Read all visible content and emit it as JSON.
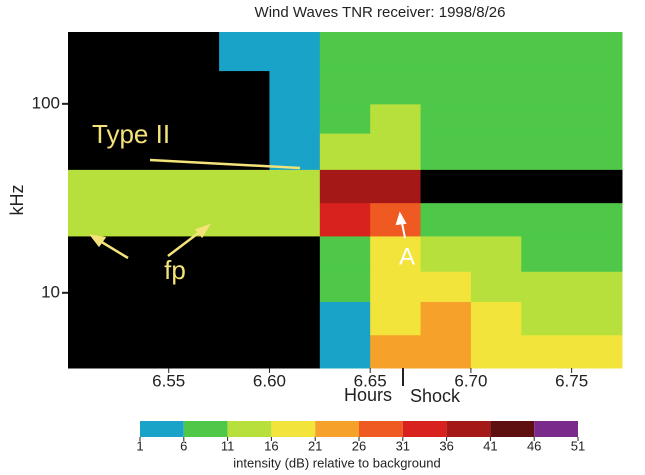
{
  "chart_data": {
    "type": "spectrogram",
    "title": "Wind Waves TNR receiver: 1998/8/26",
    "x_label": "Hours",
    "y_label": "kHz",
    "colorbar_label": "intensity (dB) relative to background",
    "annotations": [
      "Type II",
      "fp",
      "A",
      "Shock"
    ],
    "xlim": [
      6.5,
      6.775
    ],
    "ylim": [
      4,
      240
    ],
    "y_log": true,
    "xticks": [
      6.55,
      {
        "value": 6.6,
        "label": "6.60"
      },
      6.65,
      {
        "value": 6.7,
        "label": "6.70"
      },
      6.75
    ],
    "yticks": [
      10,
      100
    ],
    "xbins": [
      6.5,
      6.525,
      6.55,
      6.575,
      6.6,
      6.625,
      6.65,
      6.675,
      6.7,
      6.725,
      6.75,
      6.775
    ],
    "ybins": [
      4,
      6,
      9,
      13,
      20,
      30,
      45,
      70,
      100,
      150,
      240
    ],
    "z": [
      [
        0,
        0,
        0,
        0,
        0,
        3,
        22,
        24,
        20,
        18,
        16
      ],
      [
        0,
        0,
        0,
        0,
        0,
        5,
        20,
        22,
        17,
        14,
        13
      ],
      [
        0,
        0,
        0,
        0,
        0,
        6,
        18,
        18,
        14,
        12,
        12
      ],
      [
        0,
        0,
        0,
        0,
        0,
        8,
        17,
        14,
        11,
        10,
        10
      ],
      [
        14,
        14,
        13,
        12,
        12,
        35,
        30,
        9,
        8,
        8,
        9
      ],
      [
        12,
        12,
        12,
        11,
        11,
        38,
        36,
        0,
        0,
        0,
        0
      ],
      [
        0,
        0,
        0,
        0,
        2,
        12,
        14,
        10,
        10,
        9,
        9
      ],
      [
        0,
        0,
        0,
        0,
        3,
        10,
        12,
        9,
        9,
        8,
        9
      ],
      [
        0,
        0,
        0,
        0,
        2,
        9,
        10,
        8,
        8,
        7,
        8
      ],
      [
        0,
        0,
        0,
        2,
        3,
        8,
        9,
        6,
        6,
        6,
        6
      ]
    ],
    "background_color": "#000000",
    "colorbar_ticks": [
      1,
      6,
      11,
      16,
      21,
      26,
      31,
      36,
      41,
      46,
      51
    ],
    "colors": [
      "#1aa3c8",
      "#4fc84a",
      "#b8e03c",
      "#f2e43a",
      "#f6a12a",
      "#ee5a22",
      "#d8221e",
      "#a51818",
      "#5e1010",
      "#7a2a8a"
    ]
  }
}
